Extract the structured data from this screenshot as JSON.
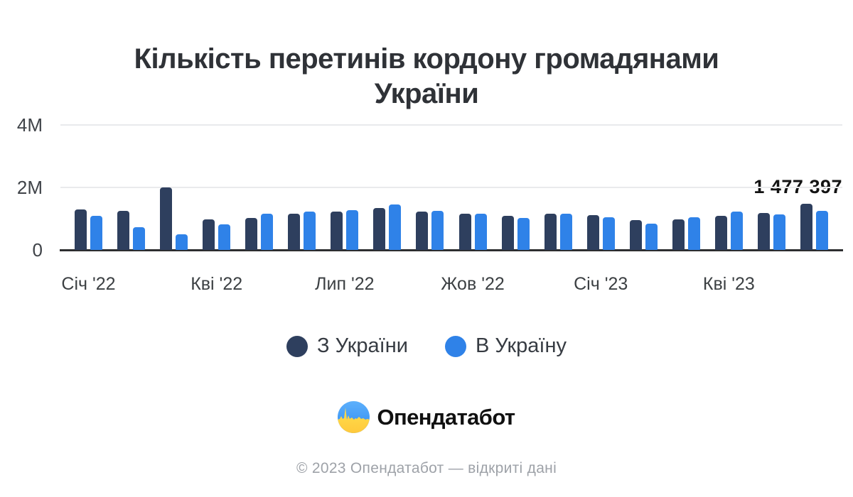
{
  "title": {
    "line1": "Кількість перетинів кордону громадянами",
    "line2": "України"
  },
  "chart_data": {
    "type": "bar",
    "title": "Кількість перетинів кордону громадянами України",
    "categories": [
      "Січ '22",
      "Лют '22",
      "Бер '22",
      "Кві '22",
      "Тра '22",
      "Чер '22",
      "Лип '22",
      "Сер '22",
      "Вер '22",
      "Жов '22",
      "Лис '22",
      "Гру '22",
      "Січ '23",
      "Лют '23",
      "Бер '23",
      "Кві '23",
      "Тра '23",
      "Чер '23"
    ],
    "x_tick_every": 3,
    "visible_x_tick_labels": [
      "Січ '22",
      "Кві '22",
      "Лип '22",
      "Жов '22",
      "Січ '23",
      "Кві '23"
    ],
    "series": [
      {
        "name": "З України",
        "color": "#2e3f5e",
        "values": [
          1300000,
          1260000,
          2000000,
          980000,
          1030000,
          1170000,
          1220000,
          1330000,
          1220000,
          1160000,
          1080000,
          1170000,
          1120000,
          950000,
          980000,
          1080000,
          1180000,
          1477397
        ]
      },
      {
        "name": "В Україну",
        "color": "#2f82e8",
        "values": [
          1080000,
          730000,
          500000,
          810000,
          1170000,
          1220000,
          1280000,
          1460000,
          1240000,
          1160000,
          1020000,
          1170000,
          1040000,
          850000,
          1040000,
          1220000,
          1140000,
          1260000
        ]
      }
    ],
    "xlabel": "",
    "ylabel": "",
    "ylim": [
      0,
      4000000
    ],
    "yticks": [
      {
        "value": 0,
        "label": "0"
      },
      {
        "value": 2000000,
        "label": "2M"
      },
      {
        "value": 4000000,
        "label": "4M"
      }
    ],
    "grid": "horizontal",
    "legend_position": "bottom",
    "annotation": {
      "text": "1 477 397",
      "value": 1477397,
      "series": "З України",
      "category": "Чер '23"
    }
  },
  "branding": {
    "logo_text": "Опендатабот",
    "logo_icon": "opendatabot-pulse-icon",
    "icon_colors": {
      "blue": "#4da3f9",
      "yellow": "#ffd43b"
    }
  },
  "footer": {
    "text": "© 2023 Опендатабот — відкриті дані"
  }
}
